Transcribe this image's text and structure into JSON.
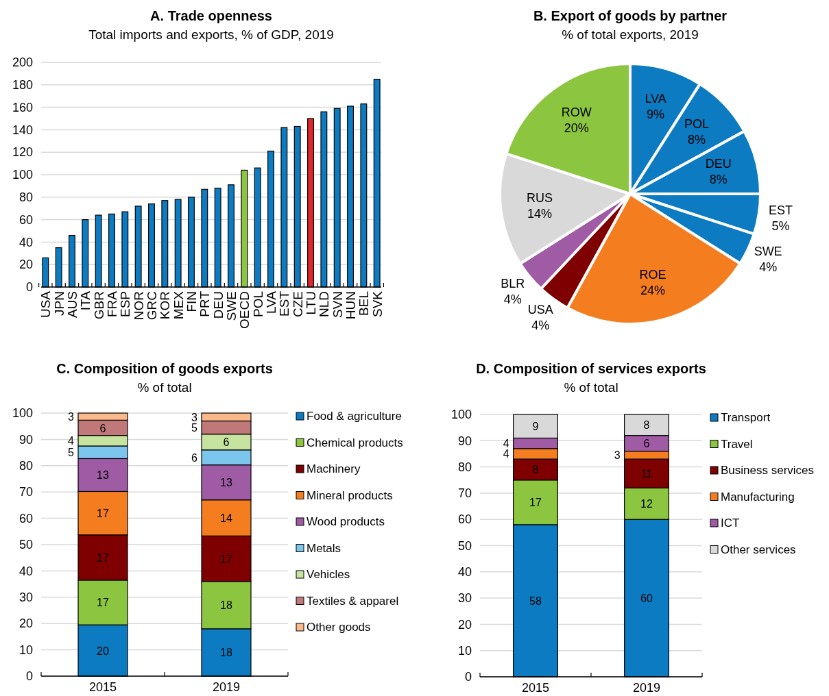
{
  "chart_data": [
    {
      "type": "bar",
      "title": "A. Trade openness",
      "subtitle": "Total imports and exports, % of GDP, 2019",
      "categories": [
        "USA",
        "JPN",
        "AUS",
        "ITA",
        "GBR",
        "FRA",
        "ESP",
        "NOR",
        "GRC",
        "KOR",
        "MEX",
        "FIN",
        "PRT",
        "DEU",
        "SWE",
        "OECD",
        "POL",
        "LVA",
        "EST",
        "CZE",
        "LTU",
        "NLD",
        "SVN",
        "HUN",
        "BEL",
        "SVK"
      ],
      "values": [
        26,
        35,
        46,
        60,
        64,
        65,
        67,
        72,
        74,
        77,
        78,
        80,
        87,
        88,
        91,
        104,
        106,
        121,
        142,
        143,
        150,
        156,
        159,
        161,
        163,
        185
      ],
      "colors": [
        "#0c7bc2",
        "#0c7bc2",
        "#0c7bc2",
        "#0c7bc2",
        "#0c7bc2",
        "#0c7bc2",
        "#0c7bc2",
        "#0c7bc2",
        "#0c7bc2",
        "#0c7bc2",
        "#0c7bc2",
        "#0c7bc2",
        "#0c7bc2",
        "#0c7bc2",
        "#0c7bc2",
        "#8cc641",
        "#0c7bc2",
        "#0c7bc2",
        "#0c7bc2",
        "#0c7bc2",
        "#e2272c",
        "#0c7bc2",
        "#0c7bc2",
        "#0c7bc2",
        "#0c7bc2",
        "#0c7bc2"
      ],
      "ylim": [
        0,
        200
      ],
      "yticks": [
        0,
        20,
        40,
        60,
        80,
        100,
        120,
        140,
        160,
        180,
        200
      ],
      "grid": "y"
    },
    {
      "type": "pie",
      "title": "B. Export of goods by partner",
      "subtitle": "% of total exports, 2019",
      "categories": [
        "LVA",
        "POL",
        "DEU",
        "EST",
        "SWE",
        "ROE",
        "USA",
        "BLR",
        "RUS",
        "ROW"
      ],
      "values": [
        9,
        8,
        8,
        5,
        4,
        24,
        4,
        4,
        14,
        20
      ],
      "value_labels": [
        "9%",
        "8%",
        "8%",
        "5%",
        "4%",
        "24%",
        "4%",
        "4%",
        "14%",
        "20%"
      ],
      "colors": [
        "#0c7bc2",
        "#0c7bc2",
        "#0c7bc2",
        "#0c7bc2",
        "#0c7bc2",
        "#f47d20",
        "#7f0000",
        "#a05ba5",
        "#d9d9d9",
        "#8cc641"
      ]
    },
    {
      "type": "bar",
      "stacked": true,
      "title": "C. Composition of goods exports",
      "subtitle": "% of total",
      "categories": [
        "2015",
        "2019"
      ],
      "ylim": [
        0,
        100
      ],
      "yticks": [
        0,
        10,
        20,
        30,
        40,
        50,
        60,
        70,
        80,
        90,
        100
      ],
      "grid": "y",
      "legend": "right",
      "series": [
        {
          "name": "Food & agriculture",
          "color": "#0c7bc2",
          "values": [
            19.5,
            18
          ],
          "value_labels": [
            "20",
            "18"
          ]
        },
        {
          "name": "Chemical products",
          "color": "#8cc641",
          "values": [
            17,
            18
          ],
          "value_labels": [
            "17",
            "18"
          ]
        },
        {
          "name": "Machinery",
          "color": "#7f0000",
          "values": [
            17.2,
            17.3
          ],
          "value_labels": [
            "17",
            "17"
          ]
        },
        {
          "name": "Mineral products",
          "color": "#f47d20",
          "values": [
            16.5,
            13.7
          ],
          "value_labels": [
            "17",
            "14"
          ]
        },
        {
          "name": "Wood products",
          "color": "#a05ba5",
          "values": [
            12.5,
            13.3
          ],
          "value_labels": [
            "13",
            "13"
          ]
        },
        {
          "name": "Metals",
          "color": "#7cc5ec",
          "values": [
            4.8,
            5.7
          ],
          "value_labels": [
            "5",
            "6"
          ]
        },
        {
          "name": "Vehicles",
          "color": "#c6e39f",
          "values": [
            4,
            6
          ],
          "value_labels": [
            "4",
            "6"
          ]
        },
        {
          "name": "Textiles & apparel",
          "color": "#c07878",
          "values": [
            5.8,
            5
          ],
          "value_labels": [
            "6",
            "5"
          ]
        },
        {
          "name": "Other goods",
          "color": "#f9b98a",
          "values": [
            2.7,
            3
          ],
          "value_labels": [
            "3",
            "3"
          ]
        }
      ]
    },
    {
      "type": "bar",
      "stacked": true,
      "title": "D. Composition of services exports",
      "subtitle": "% of total",
      "categories": [
        "2015",
        "2019"
      ],
      "ylim": [
        0,
        100
      ],
      "yticks": [
        0,
        10,
        20,
        30,
        40,
        50,
        60,
        70,
        80,
        90,
        100
      ],
      "grid": "y",
      "legend": "right",
      "data_labels": true,
      "series": [
        {
          "name": "Transport",
          "color": "#0c7bc2",
          "values": [
            58,
            60
          ]
        },
        {
          "name": "Travel",
          "color": "#8cc641",
          "values": [
            17,
            12
          ]
        },
        {
          "name": "Business services",
          "color": "#7f0000",
          "values": [
            8,
            11
          ]
        },
        {
          "name": "Manufacturing",
          "color": "#f47d20",
          "values": [
            4,
            3
          ]
        },
        {
          "name": "ICT",
          "color": "#a05ba5",
          "values": [
            4,
            6
          ]
        },
        {
          "name": "Other services",
          "color": "#d9d9d9",
          "values": [
            9,
            8
          ]
        }
      ]
    }
  ]
}
